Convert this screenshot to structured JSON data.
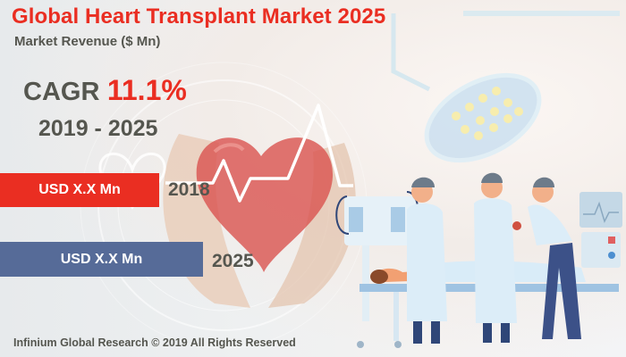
{
  "header": {
    "title": "Global Heart Transplant Market 2025",
    "subtitle": "Market Revenue ($ Mn)"
  },
  "growth": {
    "cagr_label": "CAGR",
    "cagr_value": "11.1%",
    "period": "2019 - 2025"
  },
  "revenue_bars": [
    {
      "label": "USD X.X Mn",
      "year": "2018",
      "color": "#ea2e22"
    },
    {
      "label": "USD X.X Mn",
      "year": "2025",
      "color": "#566b98"
    }
  ],
  "illustration": {
    "heart_icon": "heart-in-hands-icon",
    "ecg_icon": "heartbeat-line-icon",
    "surgery_icon": "surgical-team-icon",
    "lamp_icon": "surgical-lamp-icon"
  },
  "footer": {
    "copyright": "Infinium Global Research © 2019 All Rights Reserved"
  }
}
